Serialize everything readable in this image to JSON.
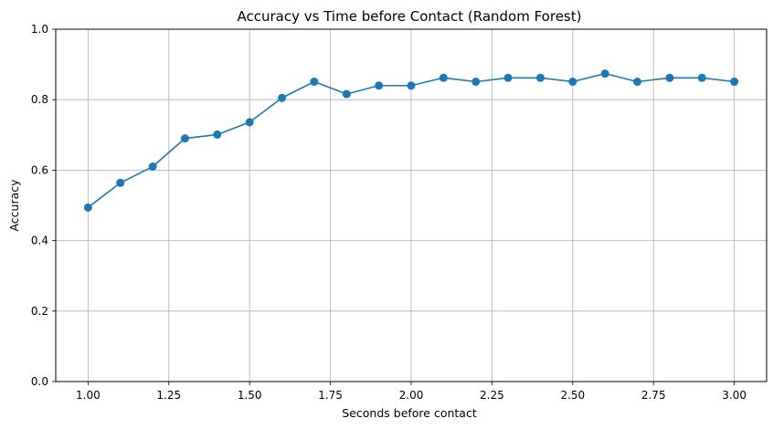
{
  "chart_data": {
    "type": "line",
    "title": "Accuracy vs Time before Contact (Random Forest)",
    "xlabel": "Seconds before contact",
    "ylabel": "Accuracy",
    "xlim": [
      0.9,
      3.1
    ],
    "ylim": [
      0.0,
      1.0
    ],
    "x_ticks": [
      1.0,
      1.25,
      1.5,
      1.75,
      2.0,
      2.25,
      2.5,
      2.75,
      3.0
    ],
    "x_tick_labels": [
      "1.00",
      "1.25",
      "1.50",
      "1.75",
      "2.00",
      "2.25",
      "2.50",
      "2.75",
      "3.00"
    ],
    "y_ticks": [
      0.0,
      0.2,
      0.4,
      0.6,
      0.8,
      1.0
    ],
    "y_tick_labels": [
      "0.0",
      "0.2",
      "0.4",
      "0.6",
      "0.8",
      "1.0"
    ],
    "grid": true,
    "marker": "circle",
    "color": "#1f77b4",
    "series": [
      {
        "x": [
          1.0,
          1.1,
          1.2,
          1.3,
          1.4,
          1.5,
          1.6,
          1.7,
          1.8,
          1.9,
          2.0,
          2.1,
          2.2,
          2.3,
          2.4,
          2.5,
          2.6,
          2.7,
          2.8,
          2.9,
          3.0
        ],
        "values": [
          0.494,
          0.564,
          0.61,
          0.69,
          0.701,
          0.736,
          0.805,
          0.851,
          0.816,
          0.84,
          0.84,
          0.862,
          0.851,
          0.862,
          0.862,
          0.851,
          0.874,
          0.851,
          0.862,
          0.862,
          0.851
        ]
      }
    ]
  }
}
